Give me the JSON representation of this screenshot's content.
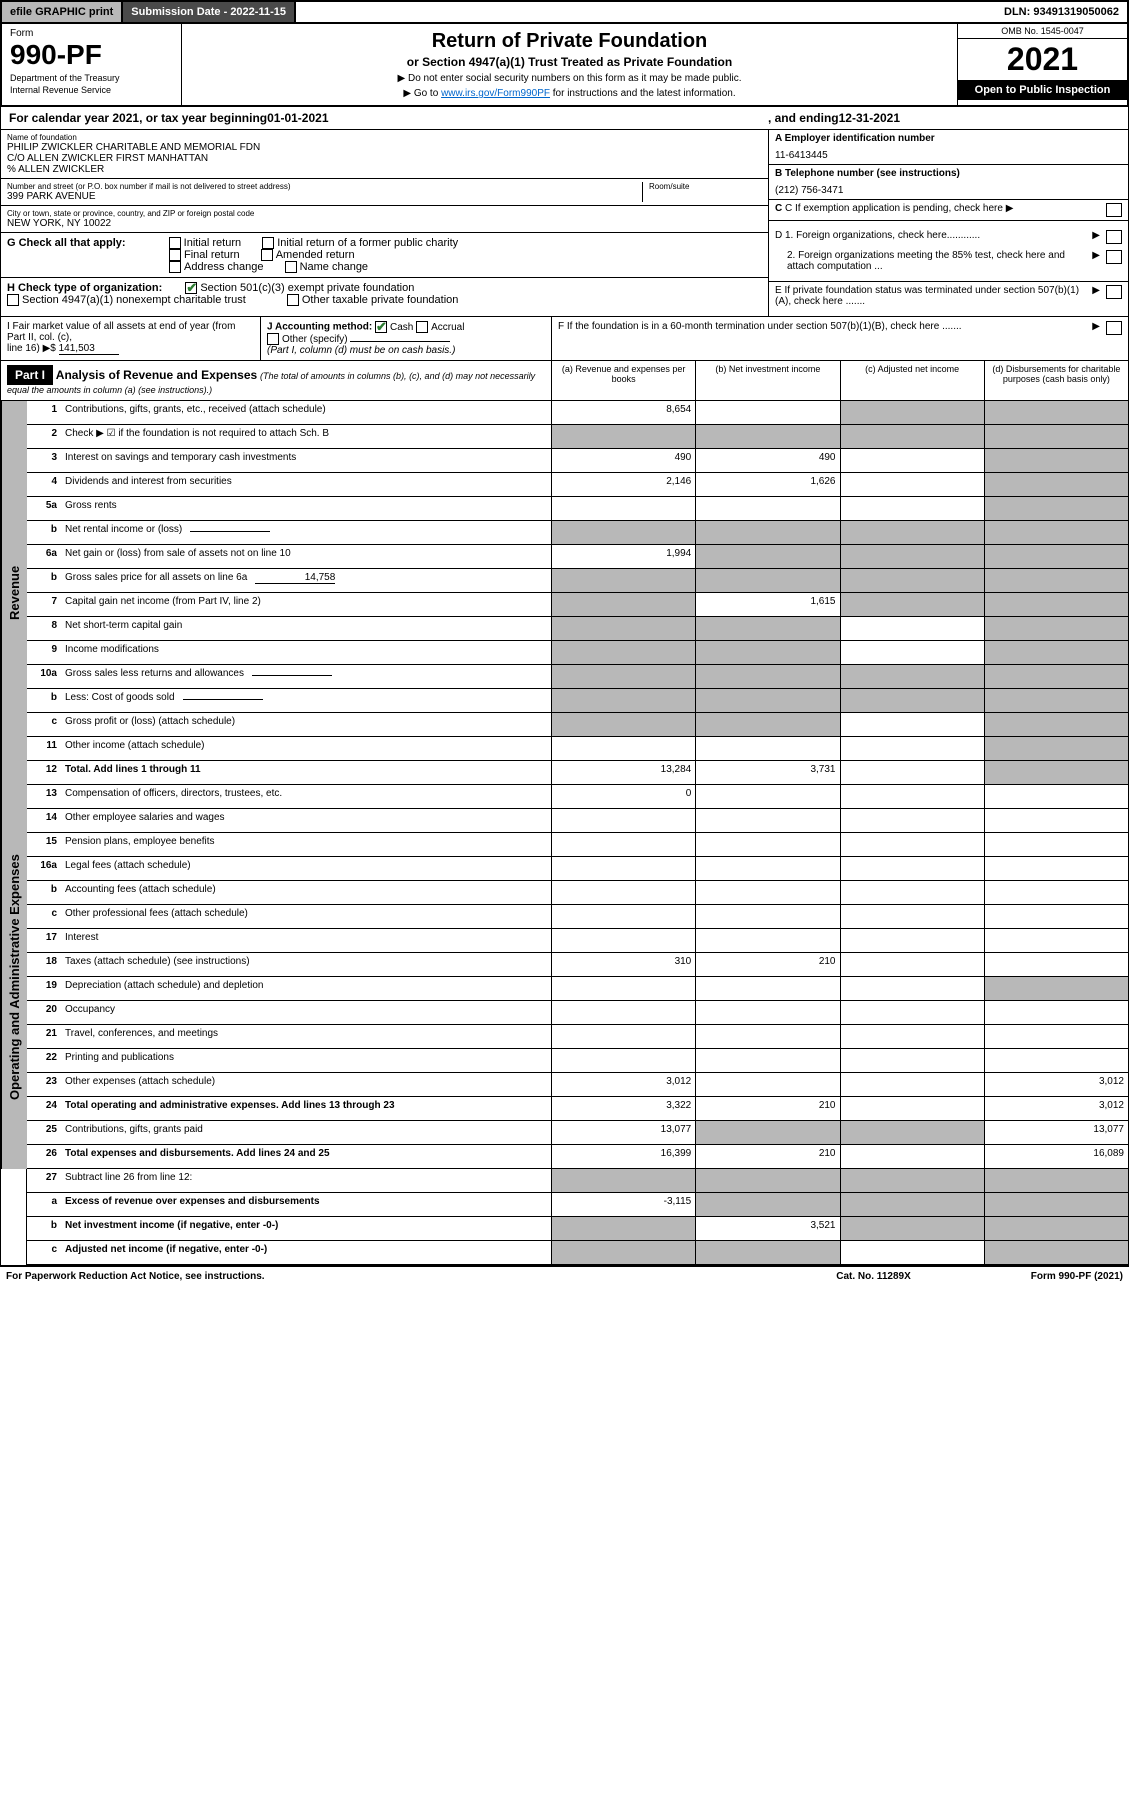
{
  "topbar": {
    "efile": "efile GRAPHIC print",
    "submission_label": "Submission Date - 2022-11-15",
    "dln": "DLN: 93491319050062"
  },
  "header": {
    "form_label": "Form",
    "form_number": "990-PF",
    "dept": "Department of the Treasury",
    "irs": "Internal Revenue Service",
    "title": "Return of Private Foundation",
    "subtitle": "or Section 4947(a)(1) Trust Treated as Private Foundation",
    "note1": "▶ Do not enter social security numbers on this form as it may be made public.",
    "note2_prefix": "▶ Go to ",
    "note2_link": "www.irs.gov/Form990PF",
    "note2_suffix": " for instructions and the latest information.",
    "omb": "OMB No. 1545-0047",
    "year": "2021",
    "open": "Open to Public Inspection"
  },
  "calendar": {
    "prefix": "For calendar year 2021, or tax year beginning ",
    "begin": "01-01-2021",
    "mid": " , and ending ",
    "end": "12-31-2021"
  },
  "entity": {
    "name_label": "Name of foundation",
    "name1": "PHILIP ZWICKLER CHARITABLE AND MEMORIAL FDN",
    "name2": "C/O ALLEN ZWICKLER FIRST MANHATTAN",
    "name3": "% ALLEN ZWICKLER",
    "addr_label": "Number and street (or P.O. box number if mail is not delivered to street address)",
    "addr": "399 PARK AVENUE",
    "room_label": "Room/suite",
    "city_label": "City or town, state or province, country, and ZIP or foreign postal code",
    "city": "NEW YORK, NY  10022",
    "ein_label": "A Employer identification number",
    "ein": "11-6413445",
    "phone_label": "B Telephone number (see instructions)",
    "phone": "(212) 756-3471",
    "c_label": "C If exemption application is pending, check here",
    "d1": "D 1. Foreign organizations, check here............",
    "d2": "2. Foreign organizations meeting the 85% test, check here and attach computation ...",
    "e_label": "E  If private foundation status was terminated under section 507(b)(1)(A), check here .......",
    "f_label": "F  If the foundation is in a 60-month termination under section 507(b)(1)(B), check here .......",
    "g_label": "G Check all that apply:",
    "g_opts": [
      "Initial return",
      "Initial return of a former public charity",
      "Final return",
      "Amended return",
      "Address change",
      "Name change"
    ],
    "h_label": "H Check type of organization:",
    "h_opt1": "Section 501(c)(3) exempt private foundation",
    "h_opt2": "Section 4947(a)(1) nonexempt charitable trust",
    "h_opt3": "Other taxable private foundation",
    "i_label": "I Fair market value of all assets at end of year (from Part II, col. (c),",
    "i_line": "line 16) ▶$ ",
    "i_val": "141,503",
    "j_label": "J Accounting method:",
    "j_cash": "Cash",
    "j_accrual": "Accrual",
    "j_other": "Other (specify)",
    "j_note": "(Part I, column (d) must be on cash basis.)"
  },
  "part1": {
    "label": "Part I",
    "title": "Analysis of Revenue and Expenses",
    "title_em": " (The total of amounts in columns (b), (c), and (d) may not necessarily equal the amounts in column (a) (see instructions).)",
    "cols": {
      "a": "(a) Revenue and expenses per books",
      "b": "(b) Net investment income",
      "c": "(c) Adjusted net income",
      "d": "(d) Disbursements for charitable purposes (cash basis only)"
    }
  },
  "sections": {
    "revenue": "Revenue",
    "opex": "Operating and Administrative Expenses"
  },
  "lines": [
    {
      "n": "1",
      "desc": "Contributions, gifts, grants, etc., received (attach schedule)",
      "a": "8,654",
      "b": "",
      "c": "grey",
      "d": "grey"
    },
    {
      "n": "2",
      "desc": "Check ▶ ☑ if the foundation is not required to attach Sch. B",
      "a": "grey",
      "b": "grey",
      "c": "grey",
      "d": "grey",
      "nob": true
    },
    {
      "n": "3",
      "desc": "Interest on savings and temporary cash investments",
      "a": "490",
      "b": "490",
      "c": "",
      "d": "grey"
    },
    {
      "n": "4",
      "desc": "Dividends and interest from securities",
      "a": "2,146",
      "b": "1,626",
      "c": "",
      "d": "grey"
    },
    {
      "n": "5a",
      "desc": "Gross rents",
      "a": "",
      "b": "",
      "c": "",
      "d": "grey"
    },
    {
      "n": "b",
      "desc": "Net rental income or (loss)",
      "a": "grey",
      "b": "grey",
      "c": "grey",
      "d": "grey",
      "inline": true
    },
    {
      "n": "6a",
      "desc": "Net gain or (loss) from sale of assets not on line 10",
      "a": "1,994",
      "b": "grey",
      "c": "grey",
      "d": "grey"
    },
    {
      "n": "b",
      "desc": "Gross sales price for all assets on line 6a",
      "a": "grey",
      "b": "grey",
      "c": "grey",
      "d": "grey",
      "inline": true,
      "inlineval": "14,758"
    },
    {
      "n": "7",
      "desc": "Capital gain net income (from Part IV, line 2)",
      "a": "grey",
      "b": "1,615",
      "c": "grey",
      "d": "grey"
    },
    {
      "n": "8",
      "desc": "Net short-term capital gain",
      "a": "grey",
      "b": "grey",
      "c": "",
      "d": "grey"
    },
    {
      "n": "9",
      "desc": "Income modifications",
      "a": "grey",
      "b": "grey",
      "c": "",
      "d": "grey"
    },
    {
      "n": "10a",
      "desc": "Gross sales less returns and allowances",
      "a": "grey",
      "b": "grey",
      "c": "grey",
      "d": "grey",
      "inline": true
    },
    {
      "n": "b",
      "desc": "Less: Cost of goods sold",
      "a": "grey",
      "b": "grey",
      "c": "grey",
      "d": "grey",
      "inline": true
    },
    {
      "n": "c",
      "desc": "Gross profit or (loss) (attach schedule)",
      "a": "grey",
      "b": "grey",
      "c": "",
      "d": "grey"
    },
    {
      "n": "11",
      "desc": "Other income (attach schedule)",
      "a": "",
      "b": "",
      "c": "",
      "d": "grey"
    },
    {
      "n": "12",
      "desc": "Total. Add lines 1 through 11",
      "a": "13,284",
      "b": "3,731",
      "c": "",
      "d": "grey",
      "bold": true
    }
  ],
  "opex_lines": [
    {
      "n": "13",
      "desc": "Compensation of officers, directors, trustees, etc.",
      "a": "0",
      "b": "",
      "c": "",
      "d": ""
    },
    {
      "n": "14",
      "desc": "Other employee salaries and wages",
      "a": "",
      "b": "",
      "c": "",
      "d": ""
    },
    {
      "n": "15",
      "desc": "Pension plans, employee benefits",
      "a": "",
      "b": "",
      "c": "",
      "d": ""
    },
    {
      "n": "16a",
      "desc": "Legal fees (attach schedule)",
      "a": "",
      "b": "",
      "c": "",
      "d": ""
    },
    {
      "n": "b",
      "desc": "Accounting fees (attach schedule)",
      "a": "",
      "b": "",
      "c": "",
      "d": ""
    },
    {
      "n": "c",
      "desc": "Other professional fees (attach schedule)",
      "a": "",
      "b": "",
      "c": "",
      "d": ""
    },
    {
      "n": "17",
      "desc": "Interest",
      "a": "",
      "b": "",
      "c": "",
      "d": ""
    },
    {
      "n": "18",
      "desc": "Taxes (attach schedule) (see instructions)",
      "a": "310",
      "b": "210",
      "c": "",
      "d": ""
    },
    {
      "n": "19",
      "desc": "Depreciation (attach schedule) and depletion",
      "a": "",
      "b": "",
      "c": "",
      "d": "grey"
    },
    {
      "n": "20",
      "desc": "Occupancy",
      "a": "",
      "b": "",
      "c": "",
      "d": ""
    },
    {
      "n": "21",
      "desc": "Travel, conferences, and meetings",
      "a": "",
      "b": "",
      "c": "",
      "d": ""
    },
    {
      "n": "22",
      "desc": "Printing and publications",
      "a": "",
      "b": "",
      "c": "",
      "d": ""
    },
    {
      "n": "23",
      "desc": "Other expenses (attach schedule)",
      "a": "3,012",
      "b": "",
      "c": "",
      "d": "3,012"
    },
    {
      "n": "24",
      "desc": "Total operating and administrative expenses. Add lines 13 through 23",
      "a": "3,322",
      "b": "210",
      "c": "",
      "d": "3,012",
      "bold": true
    },
    {
      "n": "25",
      "desc": "Contributions, gifts, grants paid",
      "a": "13,077",
      "b": "grey",
      "c": "grey",
      "d": "13,077"
    },
    {
      "n": "26",
      "desc": "Total expenses and disbursements. Add lines 24 and 25",
      "a": "16,399",
      "b": "210",
      "c": "",
      "d": "16,089",
      "bold": true
    }
  ],
  "bottom_lines": [
    {
      "n": "27",
      "desc": "Subtract line 26 from line 12:",
      "a": "grey",
      "b": "grey",
      "c": "grey",
      "d": "grey"
    },
    {
      "n": "a",
      "desc": "Excess of revenue over expenses and disbursements",
      "a": "-3,115",
      "b": "grey",
      "c": "grey",
      "d": "grey",
      "bold": true
    },
    {
      "n": "b",
      "desc": "Net investment income (if negative, enter -0-)",
      "a": "grey",
      "b": "3,521",
      "c": "grey",
      "d": "grey",
      "bold": true
    },
    {
      "n": "c",
      "desc": "Adjusted net income (if negative, enter -0-)",
      "a": "grey",
      "b": "grey",
      "c": "",
      "d": "grey",
      "bold": true
    }
  ],
  "footer": {
    "left": "For Paperwork Reduction Act Notice, see instructions.",
    "mid": "Cat. No. 11289X",
    "right": "Form 990-PF (2021)"
  }
}
